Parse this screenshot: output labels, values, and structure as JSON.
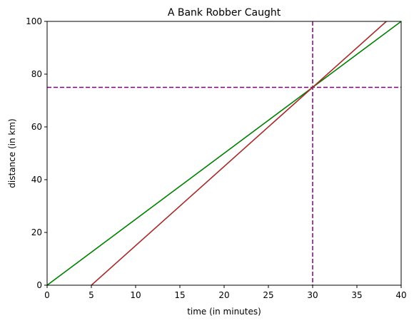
{
  "chart_data": {
    "type": "line",
    "title": "A Bank Robber Caught",
    "xlabel": "time (in minutes)",
    "ylabel": "distance (in km)",
    "xlim": [
      0,
      40
    ],
    "ylim": [
      0,
      100
    ],
    "x_ticks": [
      0,
      5,
      10,
      15,
      20,
      25,
      30,
      35,
      40
    ],
    "y_ticks": [
      0,
      20,
      40,
      60,
      80,
      100
    ],
    "grid": false,
    "series": [
      {
        "color": "#008000",
        "points": [
          [
            0,
            0
          ],
          [
            40,
            100
          ]
        ]
      },
      {
        "color": "#a52a2a",
        "points": [
          [
            5,
            0
          ],
          [
            38.33,
            100
          ]
        ]
      }
    ],
    "reference_lines": [
      {
        "orientation": "vertical",
        "value": 30,
        "color": "#800080",
        "style": "dashed"
      },
      {
        "orientation": "horizontal",
        "value": 75,
        "color": "#800080",
        "style": "dashed"
      }
    ]
  }
}
